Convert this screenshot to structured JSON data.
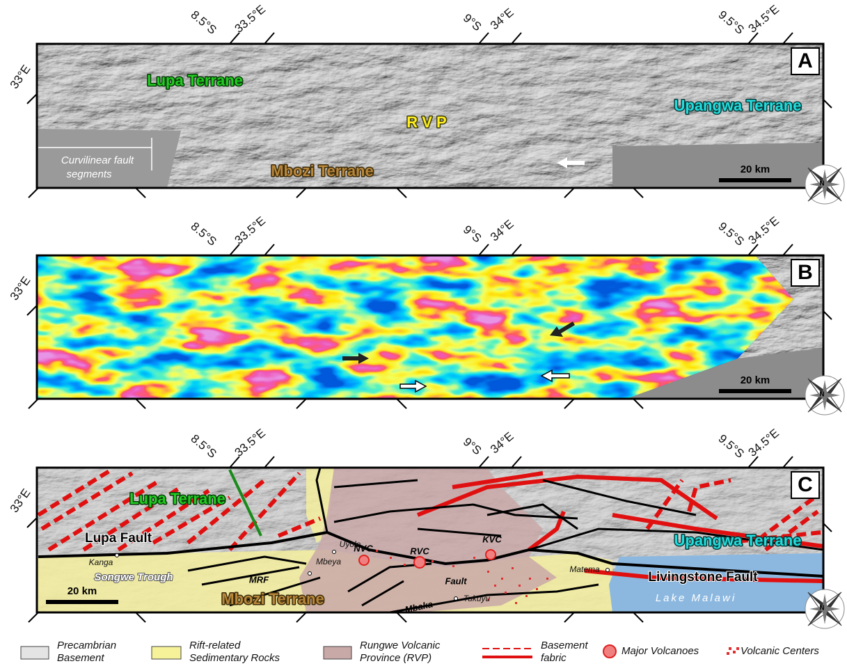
{
  "graticule": {
    "top": [
      "8.5°S",
      "33.5°E",
      "9°S",
      "34°E",
      "9.5°S",
      "34.5°E"
    ],
    "left": "33°E"
  },
  "compass": "N",
  "panels": [
    {
      "id": "A",
      "scale": "20 km",
      "labels": [
        "Lupa Terrane",
        "Upangwa Terrane",
        "R V P",
        "Mbozi Terrane"
      ],
      "annotation": [
        "Curvilinear fault",
        "segments"
      ]
    },
    {
      "id": "B",
      "scale": "20 km"
    },
    {
      "id": "C",
      "scale": "20 km",
      "labels": [
        "Lupa Terrane",
        "Lupa Fault",
        "Kanga",
        "Songwe Trough",
        "Uyole",
        "Mbeya",
        "MRF",
        "Mbozi Terrane",
        "NVC",
        "RVC",
        "KVC",
        "Mbaka",
        "Fault",
        "Tukuyu",
        "Matema",
        "Upangwa Terrane",
        "Livingstone Fault",
        "Lake Malawi"
      ]
    }
  ],
  "legend": [
    {
      "label": [
        "Precambrian",
        "Basement"
      ]
    },
    {
      "label": [
        "Rift-related",
        "Sedimentary Rocks"
      ]
    },
    {
      "label": [
        "Rungwe Volcanic",
        "Province (RVP)"
      ]
    },
    {
      "label": [
        "Basement",
        "fabric"
      ]
    },
    {
      "label": [
        "Major Volcanoes"
      ]
    },
    {
      "label": [
        "Volcanic Centers"
      ]
    }
  ]
}
